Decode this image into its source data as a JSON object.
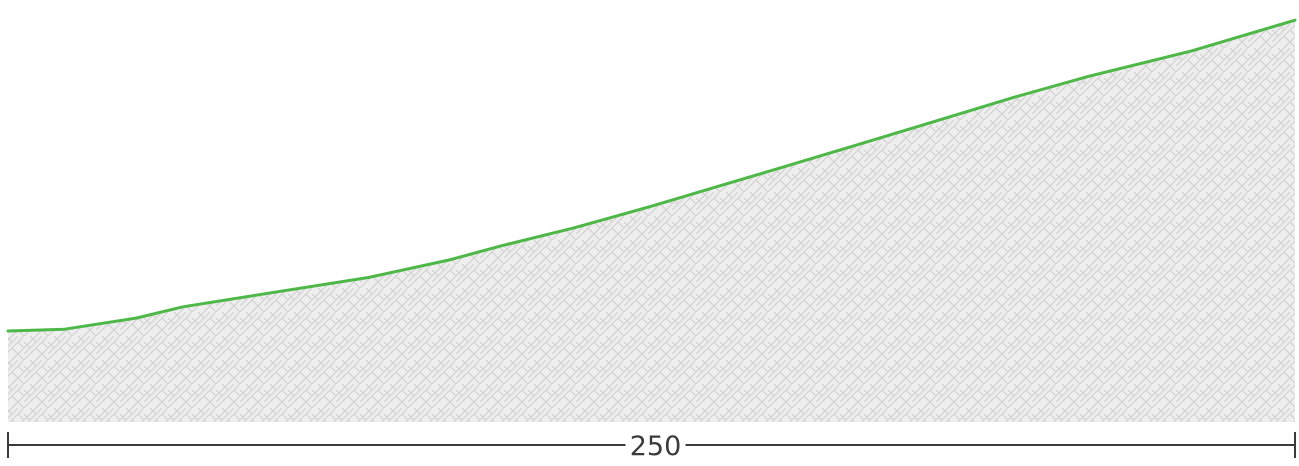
{
  "chart_data": {
    "type": "area",
    "x": [
      0,
      11,
      25,
      34,
      48,
      70,
      86,
      96,
      110,
      125,
      140,
      150,
      164,
      178,
      195,
      210,
      230,
      250
    ],
    "series": [
      {
        "values": [
          0,
          1.4,
          10.2,
          19,
          28,
          42,
          56,
          67,
          81,
          98,
          116,
          128,
          145,
          162,
          183,
          200,
          220,
          244
        ]
      }
    ],
    "xlim": [
      0,
      250
    ],
    "ylim": [
      -32,
      252
    ],
    "scale_label": "250",
    "line_color": "#4db848",
    "fill_color": "#ececec",
    "hatch_color": "#d6d6d6",
    "axis_color": "#3b3b3b",
    "grid": false,
    "legend": "none"
  }
}
